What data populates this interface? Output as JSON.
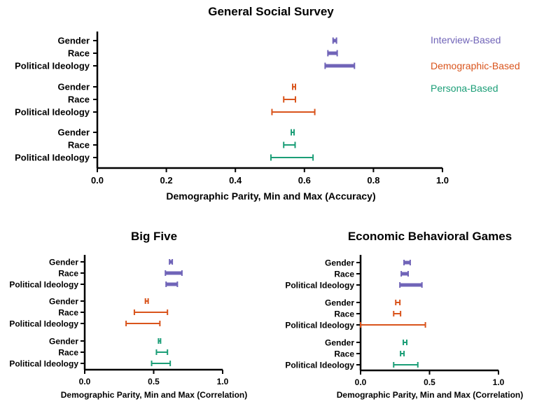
{
  "colors": {
    "interview": "#7064b8",
    "demographic": "#d9541c",
    "persona": "#1b9e77",
    "axis": "#000000"
  },
  "legend": {
    "interview": "Interview-Based",
    "demographic": "Demographic-Based",
    "persona": "Persona-Based"
  },
  "chart_data": [
    {
      "type": "interval",
      "title": "General Social Survey",
      "xlabel": "Demographic Parity, Min and Max (Accuracy)",
      "xlim": [
        0,
        1
      ],
      "xticks": [
        "0.0",
        "0.2",
        "0.4",
        "0.6",
        "0.8",
        "1.0"
      ],
      "xtick_values": [
        0,
        0.2,
        0.4,
        0.6,
        0.8,
        1.0
      ],
      "groups": [
        {
          "series": "interview",
          "rows": [
            {
              "label": "Gender",
              "min": 0.683,
              "max": 0.693
            },
            {
              "label": "Race",
              "min": 0.668,
              "max": 0.695
            },
            {
              "label": "Political Ideology",
              "min": 0.66,
              "max": 0.745
            }
          ]
        },
        {
          "series": "demographic",
          "rows": [
            {
              "label": "Gender",
              "min": 0.566,
              "max": 0.574
            },
            {
              "label": "Race",
              "min": 0.54,
              "max": 0.574
            },
            {
              "label": "Political Ideology",
              "min": 0.506,
              "max": 0.63
            }
          ]
        },
        {
          "series": "persona",
          "rows": [
            {
              "label": "Gender",
              "min": 0.562,
              "max": 0.57
            },
            {
              "label": "Race",
              "min": 0.54,
              "max": 0.573
            },
            {
              "label": "Political Ideology",
              "min": 0.503,
              "max": 0.625
            }
          ]
        }
      ]
    },
    {
      "type": "interval",
      "title": "Big Five",
      "xlabel": "Demographic Parity, Min and Max (Correlation)",
      "xlim": [
        0,
        1
      ],
      "xticks": [
        "0.0",
        "0.5",
        "1.0"
      ],
      "xtick_values": [
        0,
        0.5,
        1.0
      ],
      "groups": [
        {
          "series": "interview",
          "rows": [
            {
              "label": "Gender",
              "min": 0.615,
              "max": 0.635
            },
            {
              "label": "Race",
              "min": 0.585,
              "max": 0.705
            },
            {
              "label": "Political Ideology",
              "min": 0.59,
              "max": 0.672
            }
          ]
        },
        {
          "series": "demographic",
          "rows": [
            {
              "label": "Gender",
              "min": 0.44,
              "max": 0.46
            },
            {
              "label": "Race",
              "min": 0.36,
              "max": 0.6
            },
            {
              "label": "Political Ideology",
              "min": 0.3,
              "max": 0.545
            }
          ]
        },
        {
          "series": "persona",
          "rows": [
            {
              "label": "Gender",
              "min": 0.535,
              "max": 0.55
            },
            {
              "label": "Race",
              "min": 0.52,
              "max": 0.6
            },
            {
              "label": "Political Ideology",
              "min": 0.485,
              "max": 0.62
            }
          ]
        }
      ]
    },
    {
      "type": "interval",
      "title": "Economic Behavioral Games",
      "xlabel": "Demographic Parity, Min and Max (Correlation)",
      "xlim": [
        0,
        1
      ],
      "xticks": [
        "0.0",
        "0.5",
        "1.0"
      ],
      "xtick_values": [
        0,
        0.5,
        1.0
      ],
      "groups": [
        {
          "series": "interview",
          "rows": [
            {
              "label": "Gender",
              "min": 0.315,
              "max": 0.36
            },
            {
              "label": "Race",
              "min": 0.295,
              "max": 0.345
            },
            {
              "label": "Political Ideology",
              "min": 0.285,
              "max": 0.445
            }
          ]
        },
        {
          "series": "demographic",
          "rows": [
            {
              "label": "Gender",
              "min": 0.255,
              "max": 0.285
            },
            {
              "label": "Race",
              "min": 0.24,
              "max": 0.29
            },
            {
              "label": "Political Ideology",
              "min": 0.0,
              "max": 0.47
            }
          ]
        },
        {
          "series": "persona",
          "rows": [
            {
              "label": "Gender",
              "min": 0.31,
              "max": 0.335
            },
            {
              "label": "Race",
              "min": 0.29,
              "max": 0.315
            },
            {
              "label": "Political Ideology",
              "min": 0.24,
              "max": 0.415
            }
          ]
        }
      ]
    }
  ]
}
